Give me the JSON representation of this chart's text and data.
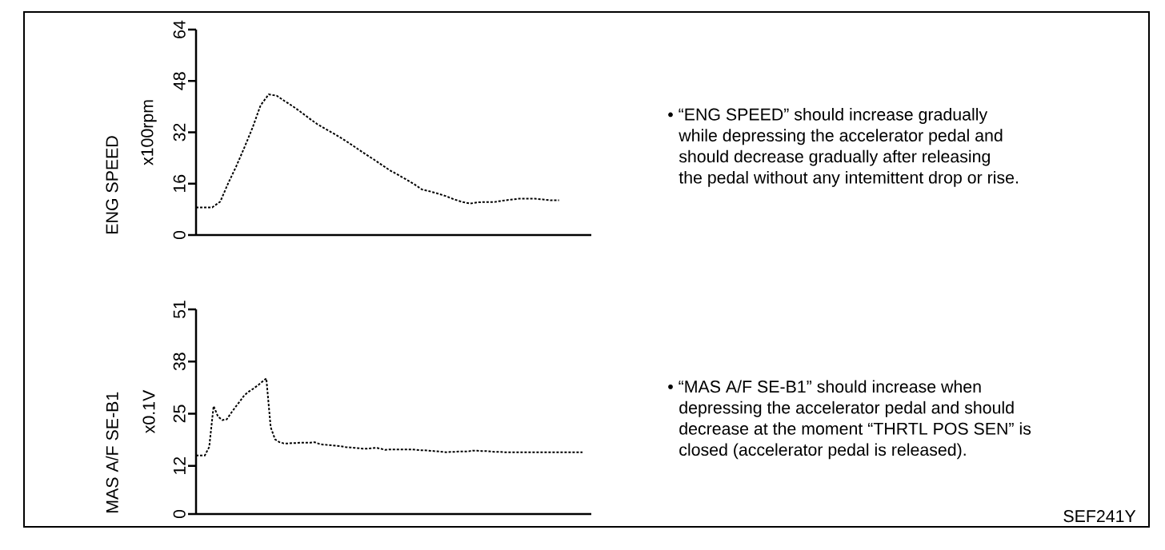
{
  "chart_data": [
    {
      "type": "line",
      "title": "ENG SPEED",
      "ylabel": "x100rpm",
      "categories": [
        null,
        null,
        null,
        null,
        null,
        null,
        null,
        null,
        null,
        null,
        null,
        null,
        null,
        null,
        null,
        null,
        null,
        null,
        null,
        null,
        null,
        null,
        null,
        null,
        null,
        null,
        null,
        null,
        null,
        null,
        null,
        null,
        null,
        null,
        null,
        null,
        null,
        null,
        null,
        null,
        null,
        null,
        null,
        null,
        null,
        null,
        null,
        null,
        null,
        null
      ],
      "values": [
        8.6,
        8.6,
        8.6,
        10.4,
        16.2,
        21.5,
        27.3,
        33.4,
        40.4,
        43.8,
        43.4,
        41.7,
        40.1,
        38.3,
        36.4,
        34.6,
        33.1,
        31.7,
        30.2,
        28.6,
        26.9,
        25.2,
        23.6,
        21.9,
        20.2,
        18.8,
        17.4,
        15.9,
        14.2,
        13.6,
        12.9,
        12.1,
        11.1,
        10.3,
        9.8,
        10.2,
        10.3,
        10.3,
        10.7,
        11.0,
        11.3,
        11.3,
        11.3,
        11.1,
        10.8,
        10.8,
        null,
        null,
        null,
        null
      ],
      "color": "#000000",
      "line_style": "dashed",
      "ylim": [
        0,
        64
      ],
      "yticks": [
        0,
        16,
        32,
        48,
        64
      ],
      "tick_labels": "y",
      "annotations": [
        "• “ENG SPEED” should increase gradually",
        "while depressing the accelerator pedal and",
        "should decrease gradually after releasing",
        "the pedal without any intemittent drop or rise."
      ]
    },
    {
      "type": "line",
      "title": "MAS A/F SE-B1",
      "ylabel": "x0.1V",
      "categories": [
        null,
        null,
        null,
        null,
        null,
        null,
        null,
        null,
        null,
        null,
        null,
        null,
        null,
        null,
        null,
        null,
        null,
        null,
        null,
        null,
        null,
        null,
        null,
        null,
        null,
        null,
        null,
        null,
        null,
        null,
        null,
        null,
        null,
        null,
        null,
        null,
        null,
        null,
        null,
        null,
        null,
        null,
        null,
        null,
        null,
        null,
        null,
        null,
        null,
        null,
        null,
        null,
        null,
        null,
        null,
        null,
        null,
        null,
        null,
        null,
        null,
        null,
        null,
        null,
        null,
        null,
        null,
        null,
        null,
        null,
        null,
        null,
        null,
        null,
        null,
        null,
        null,
        null,
        null,
        null,
        null,
        null,
        null,
        null,
        null,
        null,
        null,
        null,
        null,
        null,
        null
      ],
      "values": [
        14.6,
        14.6,
        14.6,
        16.7,
        26.9,
        24.3,
        23.4,
        23.6,
        25.2,
        26.7,
        28.1,
        29.6,
        30.5,
        31.2,
        32,
        32.9,
        33.8,
        21.6,
        18.6,
        17.9,
        17.6,
        17.6,
        17.7,
        17.7,
        17.8,
        17.8,
        17.8,
        17.9,
        17.5,
        17.3,
        17.2,
        17.1,
        17,
        16.9,
        16.7,
        16.6,
        16.5,
        16.4,
        16.3,
        16.3,
        16.4,
        16.5,
        16.3,
        16,
        16.1,
        16.1,
        16.1,
        16.1,
        16.1,
        16.1,
        16,
        15.9,
        15.9,
        15.8,
        15.7,
        15.6,
        15.5,
        15.4,
        15.5,
        15.5,
        15.6,
        15.6,
        15.6,
        15.8,
        15.8,
        15.7,
        15.7,
        15.6,
        15.5,
        15.5,
        15.4,
        15.4,
        15.4,
        15.4,
        15.4,
        15.4,
        15.4,
        15.4,
        15.4,
        15.4,
        15.4,
        15.4,
        15.4,
        15.4,
        15.4,
        15.4,
        15.4,
        15.4,
        15.4,
        null,
        null
      ],
      "color": "#000000",
      "line_style": "dashed",
      "ylim": [
        0,
        51
      ],
      "yticks": [
        0,
        12,
        25,
        38,
        51
      ],
      "tick_labels": "y",
      "annotations": [
        "• “MAS A/F SE-B1” should increase when",
        "depressing the accelerator pedal and should",
        "decrease at the moment “THRTL POS SEN” is",
        "closed (accelerator pedal is released).",
        "SEF241Y"
      ]
    }
  ]
}
